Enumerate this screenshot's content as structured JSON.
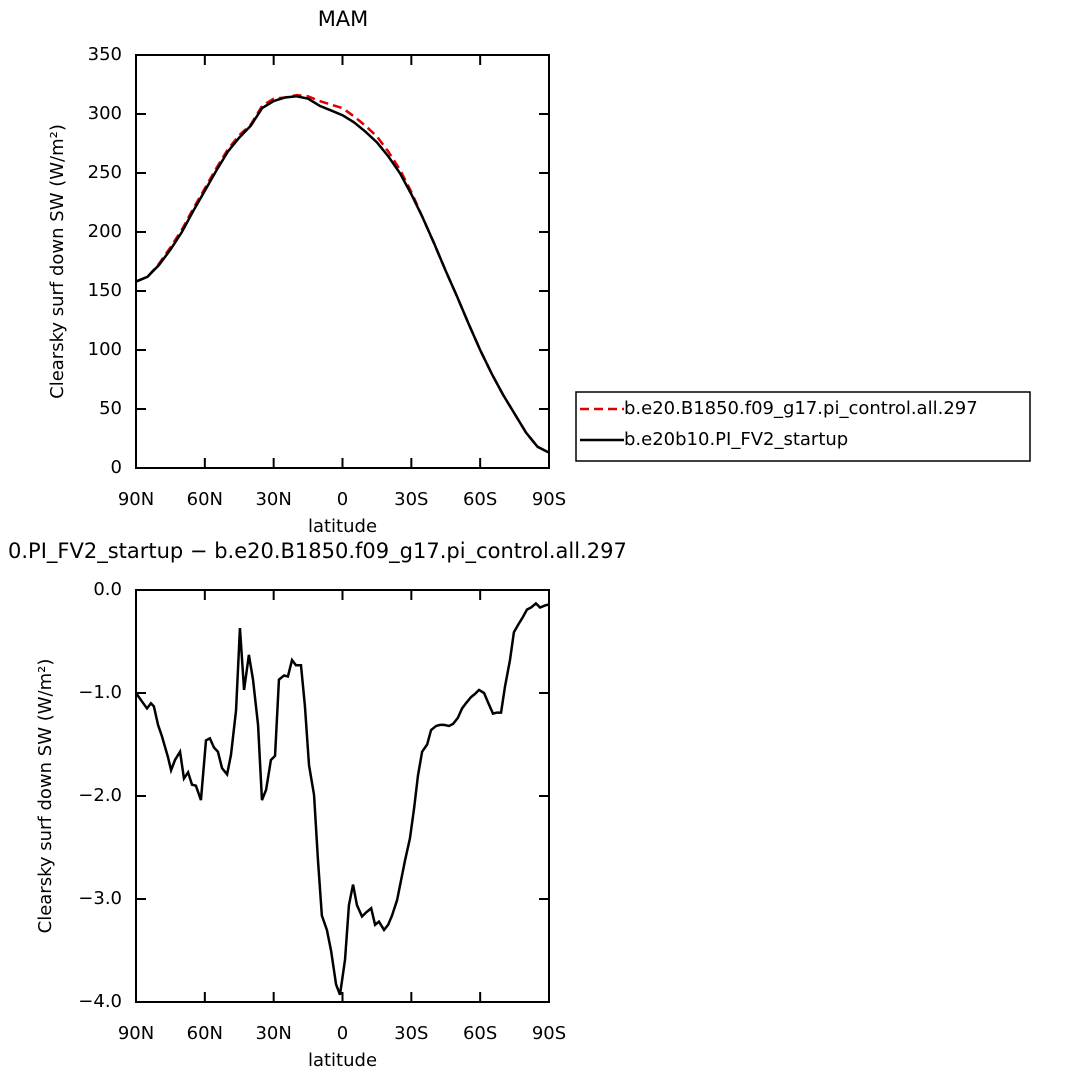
{
  "chart_data": [
    {
      "type": "line",
      "title": "MAM",
      "xlabel": "latitude",
      "ylabel": "Clearsky surf down SW (W/m²)",
      "x": [
        90,
        85,
        80,
        75,
        70,
        65,
        60,
        55,
        50,
        45,
        40,
        35,
        30,
        25,
        20,
        15,
        10,
        5,
        0,
        -5,
        -10,
        -15,
        -20,
        -25,
        -30,
        -35,
        -40,
        -45,
        -50,
        -55,
        -60,
        -65,
        -70,
        -75,
        -80,
        -85,
        -90
      ],
      "series": [
        {
          "name": "b.e20.B1850.f09_g17.pi_control.all.297",
          "color": "#e00000",
          "dash": true,
          "values": [
            158,
            162,
            173,
            187,
            202,
            220,
            237,
            254,
            270,
            282,
            291,
            307,
            313,
            314,
            316,
            315,
            311,
            308,
            305,
            298,
            290,
            281,
            268,
            253,
            234,
            212,
            190,
            167,
            145,
            122,
            100,
            80,
            62,
            46,
            30,
            18,
            13
          ]
        },
        {
          "name": "b.e20b10.PI_FV2_startup",
          "color": "#000000",
          "dash": false,
          "values": [
            158,
            162,
            172,
            185,
            200,
            218,
            235,
            252,
            268,
            280,
            290,
            305,
            311,
            314,
            315,
            313,
            307,
            303,
            299,
            293,
            285,
            276,
            264,
            250,
            232,
            212,
            190,
            167,
            145,
            122,
            100,
            80,
            62,
            46,
            30,
            18,
            13
          ]
        }
      ],
      "xlim": [
        90,
        -90
      ],
      "xticks": [
        {
          "value": 90,
          "label": "90N"
        },
        {
          "value": 60,
          "label": "60N"
        },
        {
          "value": 30,
          "label": "30N"
        },
        0,
        {
          "value": -30,
          "label": "30S"
        },
        {
          "value": -60,
          "label": "60S"
        },
        {
          "value": -90,
          "label": "90S"
        }
      ],
      "ylim": [
        0,
        350
      ],
      "yticks": [
        0,
        50,
        100,
        150,
        200,
        250,
        300,
        350
      ],
      "legend": "outside right"
    },
    {
      "type": "line",
      "title": "0.PI_FV2_startup − b.e20.B1850.f09_g17.pi_control.all.297",
      "xlabel": "latitude",
      "ylabel": "Clearsky surf down SW (W/m²)",
      "x": [
        90,
        87.8,
        85.2,
        83.5,
        82.2,
        80.4,
        78.7,
        76.1,
        74.7,
        73.0,
        70.8,
        69.1,
        67.3,
        65.6,
        63.9,
        61.7,
        59.5,
        57.8,
        56.0,
        54.3,
        52.5,
        50.3,
        48.6,
        46.4,
        44.7,
        42.9,
        40.8,
        39.0,
        36.8,
        35.1,
        33.3,
        31.2,
        29.4,
        27.7,
        25.5,
        23.8,
        22.0,
        20.3,
        18.1,
        16.4,
        14.6,
        12.4,
        10.7,
        9.0,
        6.8,
        5.0,
        2.8,
        1.1,
        -1.1,
        -2.8,
        -4.6,
        -6.3,
        -8.5,
        -10.3,
        -12.5,
        -14.2,
        -15.9,
        -18.1,
        -19.9,
        -21.6,
        -23.8,
        -25.5,
        -27.3,
        -29.4,
        -31.2,
        -32.9,
        -34.7,
        -36.9,
        -38.6,
        -40.8,
        -42.5,
        -44.3,
        -46.4,
        -48.2,
        -50.3,
        -52.1,
        -53.8,
        -56.0,
        -57.7,
        -59.5,
        -61.7,
        -63.4,
        -65.6,
        -67.3,
        -69.1,
        -70.8,
        -73.0,
        -74.7,
        -76.5,
        -78.7,
        -80.4,
        -82.2,
        -84.3,
        -86.1,
        -88.3,
        -90
      ],
      "series": [
        {
          "color": "#000000",
          "dash": false,
          "values": [
            -1.0,
            -1.07,
            -1.15,
            -1.1,
            -1.13,
            -1.31,
            -1.42,
            -1.62,
            -1.75,
            -1.65,
            -1.57,
            -1.83,
            -1.77,
            -1.89,
            -1.9,
            -2.04,
            -1.46,
            -1.44,
            -1.53,
            -1.57,
            -1.73,
            -1.79,
            -1.6,
            -1.17,
            -0.37,
            -0.97,
            -0.63,
            -0.87,
            -1.31,
            -2.04,
            -1.94,
            -1.65,
            -1.61,
            -0.87,
            -0.83,
            -0.84,
            -0.68,
            -0.73,
            -0.73,
            -1.12,
            -1.7,
            -1.99,
            -2.62,
            -3.16,
            -3.3,
            -3.5,
            -3.83,
            -3.93,
            -3.59,
            -3.06,
            -2.86,
            -3.06,
            -3.17,
            -3.13,
            -3.09,
            -3.25,
            -3.22,
            -3.3,
            -3.25,
            -3.16,
            -3.01,
            -2.82,
            -2.62,
            -2.41,
            -2.12,
            -1.8,
            -1.57,
            -1.5,
            -1.36,
            -1.32,
            -1.31,
            -1.31,
            -1.32,
            -1.3,
            -1.24,
            -1.15,
            -1.1,
            -1.04,
            -1.01,
            -0.97,
            -1.0,
            -1.09,
            -1.2,
            -1.19,
            -1.19,
            -0.94,
            -0.68,
            -0.41,
            -0.34,
            -0.26,
            -0.19,
            -0.17,
            -0.13,
            -0.17,
            -0.15,
            -0.14
          ]
        }
      ],
      "xlim": [
        90,
        -90
      ],
      "xticks": [
        {
          "value": 90,
          "label": "90N"
        },
        {
          "value": 60,
          "label": "60N"
        },
        {
          "value": 30,
          "label": "30N"
        },
        0,
        {
          "value": -30,
          "label": "30S"
        },
        {
          "value": -60,
          "label": "60S"
        },
        {
          "value": -90,
          "label": "90S"
        }
      ],
      "ylim": [
        -4.0,
        0.0
      ],
      "yticks": [
        {
          "value": -4.0,
          "label": "−4.0"
        },
        {
          "value": -3.0,
          "label": "−3.0"
        },
        {
          "value": -2.0,
          "label": "−2.0"
        },
        {
          "value": -1.0,
          "label": "−1.0"
        },
        {
          "value": 0.0,
          "label": "0.0"
        }
      ]
    }
  ]
}
